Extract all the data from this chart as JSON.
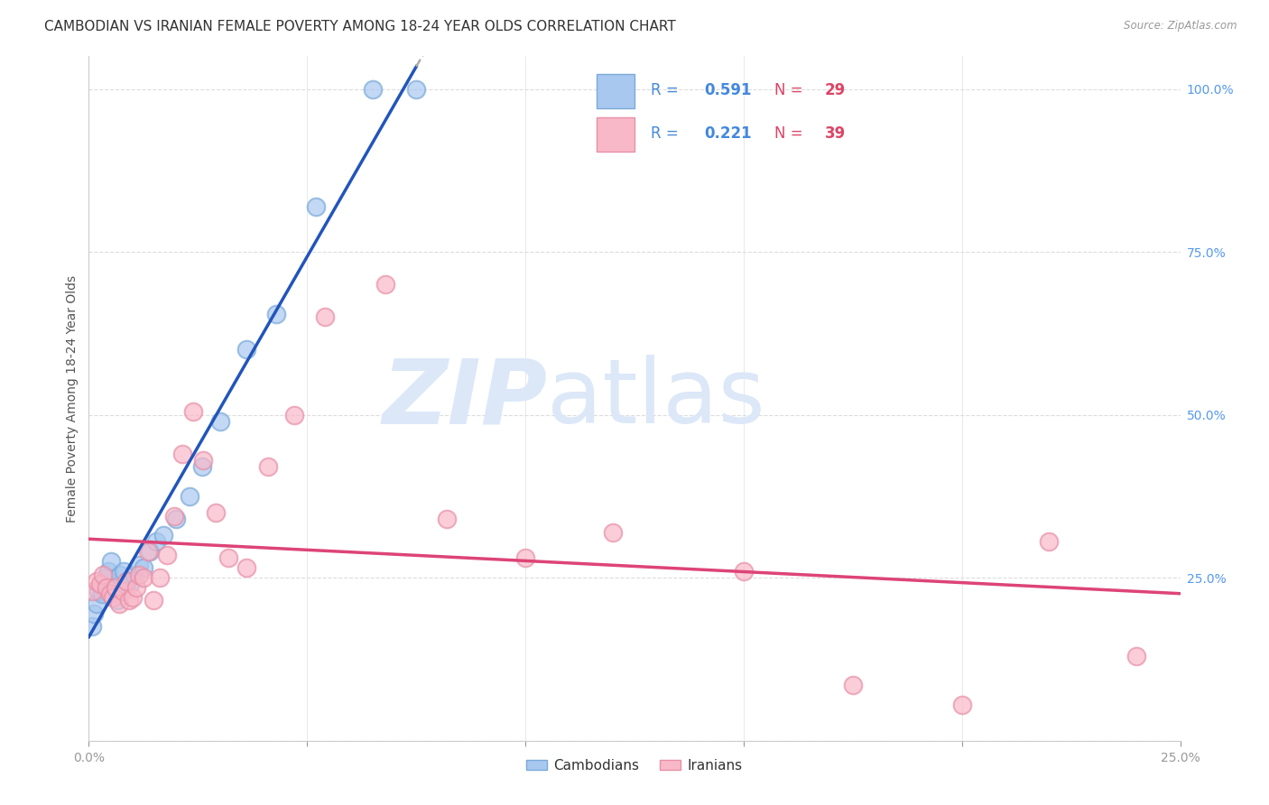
{
  "title": "CAMBODIAN VS IRANIAN FEMALE POVERTY AMONG 18-24 YEAR OLDS CORRELATION CHART",
  "source": "Source: ZipAtlas.com",
  "ylabel": "Female Poverty Among 18-24 Year Olds",
  "xlim": [
    0.0,
    0.25
  ],
  "ylim": [
    0.0,
    1.05
  ],
  "xticks": [
    0.0,
    0.05,
    0.1,
    0.15,
    0.2,
    0.25
  ],
  "xticklabels": [
    "0.0%",
    "",
    "",
    "",
    "",
    "25.0%"
  ],
  "yticks_right": [
    0.0,
    0.25,
    0.5,
    0.75,
    1.0
  ],
  "yticklabels_right": [
    "",
    "25.0%",
    "50.0%",
    "75.0%",
    "100.0%"
  ],
  "cambodian_color": "#a8c8f0",
  "cambodian_edge_color": "#7aaad8",
  "iranian_color": "#f8b8c8",
  "iranian_edge_color": "#e890a8",
  "cambodian_line_color": "#2255bb",
  "iranian_line_color": "#dd4477",
  "r_cambodian": 0.591,
  "n_cambodian": 29,
  "r_iranian": 0.221,
  "n_iranian": 39,
  "legend_r_color": "#4488dd",
  "legend_n_color": "#dd4466",
  "watermark_zip": "ZIP",
  "watermark_atlas": "atlas",
  "watermark_color": "#dce8f8",
  "grid_color": "#dddddd",
  "background_color": "#ffffff",
  "title_fontsize": 11,
  "axis_label_fontsize": 10,
  "tick_color": "#5599ee",
  "tick_fontsize": 10,
  "legend_fontsize": 12,
  "cambodian_x": [
    0.0008,
    0.0012,
    0.0018,
    0.0022,
    0.003,
    0.0038,
    0.0045,
    0.005,
    0.0058,
    0.0065,
    0.0072,
    0.008,
    0.0088,
    0.0095,
    0.0105,
    0.0115,
    0.0125,
    0.014,
    0.0155,
    0.017,
    0.02,
    0.023,
    0.026,
    0.03,
    0.036,
    0.043,
    0.052,
    0.065,
    0.075
  ],
  "cambodian_y": [
    0.175,
    0.195,
    0.21,
    0.23,
    0.225,
    0.25,
    0.26,
    0.275,
    0.235,
    0.215,
    0.255,
    0.26,
    0.245,
    0.24,
    0.255,
    0.27,
    0.265,
    0.29,
    0.305,
    0.315,
    0.34,
    0.375,
    0.42,
    0.49,
    0.6,
    0.655,
    0.82,
    1.0,
    1.0
  ],
  "iranian_x": [
    0.001,
    0.0018,
    0.0025,
    0.0032,
    0.004,
    0.0048,
    0.0055,
    0.0062,
    0.007,
    0.0078,
    0.0085,
    0.0092,
    0.01,
    0.0108,
    0.0115,
    0.0125,
    0.0135,
    0.0148,
    0.0162,
    0.0178,
    0.0195,
    0.0215,
    0.0238,
    0.0262,
    0.029,
    0.032,
    0.036,
    0.041,
    0.047,
    0.054,
    0.068,
    0.082,
    0.1,
    0.12,
    0.15,
    0.175,
    0.2,
    0.22,
    0.24
  ],
  "iranian_y": [
    0.23,
    0.245,
    0.24,
    0.255,
    0.235,
    0.225,
    0.22,
    0.235,
    0.21,
    0.23,
    0.245,
    0.215,
    0.22,
    0.235,
    0.255,
    0.25,
    0.29,
    0.215,
    0.25,
    0.285,
    0.345,
    0.44,
    0.505,
    0.43,
    0.35,
    0.28,
    0.265,
    0.42,
    0.5,
    0.65,
    0.7,
    0.34,
    0.28,
    0.32,
    0.26,
    0.085,
    0.055,
    0.305,
    0.13
  ]
}
